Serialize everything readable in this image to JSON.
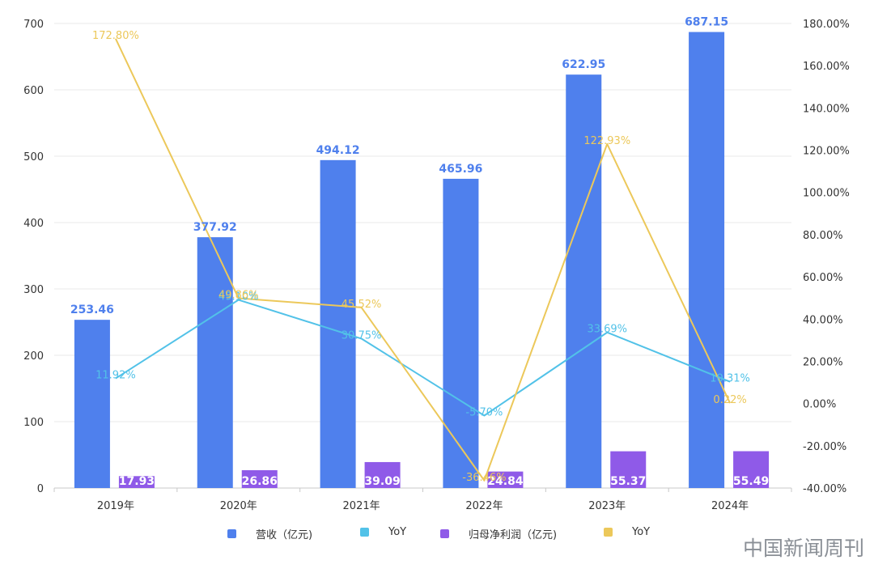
{
  "chart_data": {
    "type": "bar",
    "categories": [
      "2019年",
      "2020年",
      "2021年",
      "2022年",
      "2023年",
      "2024年"
    ],
    "series": [
      {
        "name": "营收（亿元)",
        "kind": "bar",
        "axis": "left",
        "color": "#4f80ed",
        "values": [
          253.46,
          377.92,
          494.12,
          465.96,
          622.95,
          687.15
        ],
        "labels": [
          "253.46",
          "377.92",
          "494.12",
          "465.96",
          "622.95",
          "687.15"
        ]
      },
      {
        "name": "YoY",
        "kind": "line",
        "axis": "right",
        "color": "#52c2e8",
        "values": [
          11.92,
          49.1,
          30.75,
          -5.7,
          33.69,
          10.31
        ],
        "labels": [
          "11.92%",
          "49.10%",
          "30.75%",
          "-5.70%",
          "33.69%",
          "10.31%"
        ]
      },
      {
        "name": "归母净利润（亿元)",
        "kind": "bar",
        "axis": "left",
        "color": "#8f5ae8",
        "values": [
          17.93,
          26.86,
          39.09,
          24.84,
          55.37,
          55.49
        ],
        "labels": [
          "17.93",
          "26.86",
          "39.09",
          "24.84",
          "55.37",
          "55.49"
        ]
      },
      {
        "name": "YoY",
        "kind": "line",
        "axis": "right",
        "color": "#ecc85a",
        "values": [
          172.8,
          49.86,
          45.52,
          -36.46,
          122.93,
          0.22
        ],
        "labels": [
          "172.80%",
          "49.86%",
          "45.52%",
          "-36.46%",
          "122.93%",
          "0.22%"
        ]
      }
    ],
    "y_left": {
      "min": 0,
      "max": 700,
      "ticks": [
        "0",
        "100",
        "200",
        "300",
        "400",
        "500",
        "600",
        "700"
      ]
    },
    "y_right": {
      "min": -40,
      "max": 180,
      "ticks": [
        "-40.00%",
        "-20.00%",
        "0.00%",
        "20.00%",
        "40.00%",
        "60.00%",
        "80.00%",
        "100.00%",
        "120.00%",
        "140.00%",
        "160.00%",
        "180.00%"
      ]
    },
    "grid": true,
    "legend_position": "bottom"
  },
  "watermark": "中国新闻周刊"
}
